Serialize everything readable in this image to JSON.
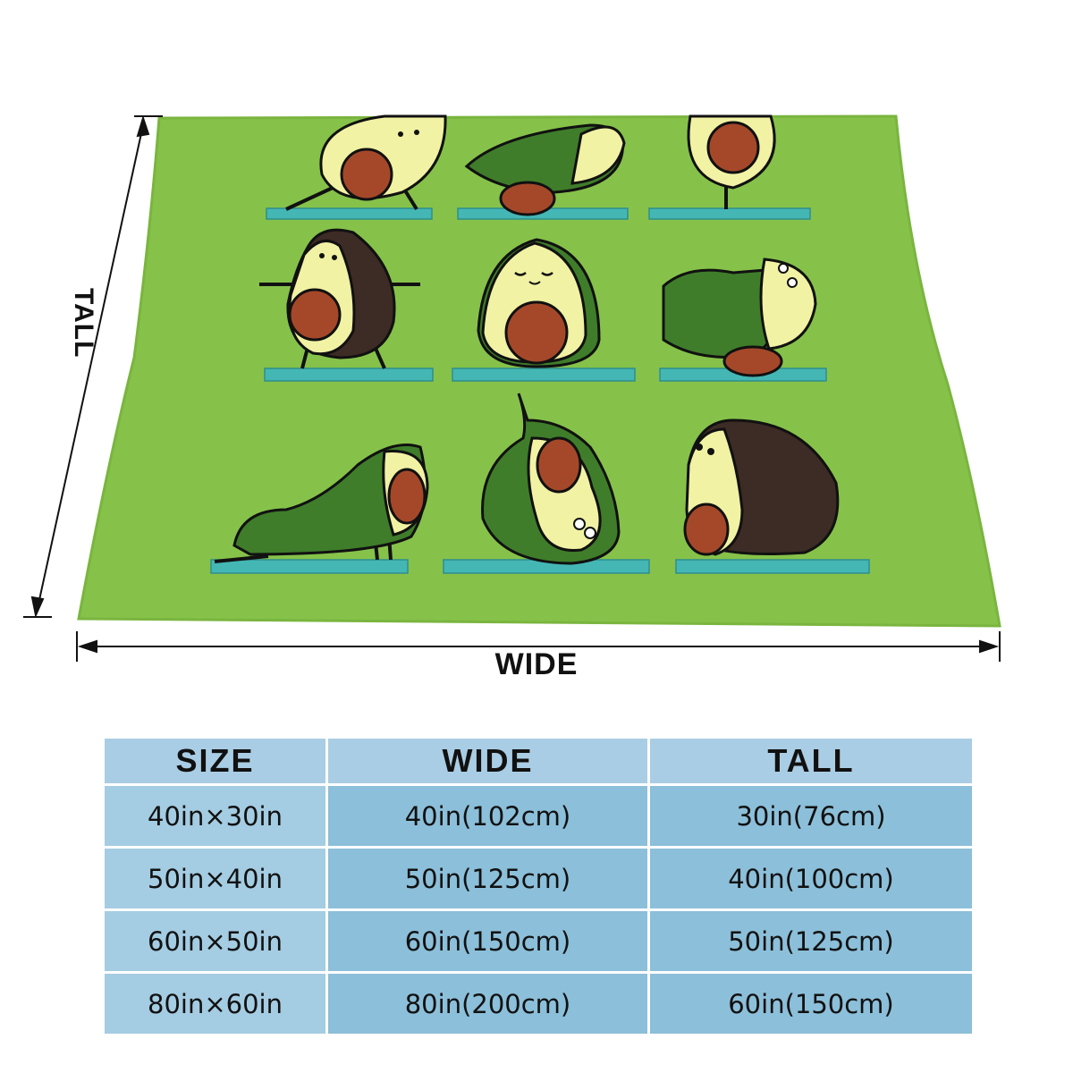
{
  "labels": {
    "tall": "TALL",
    "wide": "WIDE"
  },
  "colors": {
    "blanket": "#86c24a",
    "mat": "#44b7b5",
    "avocado_dark": "#3f7d2a",
    "pit": "#a5482a",
    "flesh": "#f1f2a4",
    "table_header": "#a9cde4",
    "table_cell": "#8cbfd9"
  },
  "table": {
    "headers": [
      "SIZE",
      "WIDE",
      "TALL"
    ],
    "rows": [
      [
        "40in×30in",
        "40in(102cm)",
        "30in(76cm)"
      ],
      [
        "50in×40in",
        "50in(125cm)",
        "40in(100cm)"
      ],
      [
        "60in×50in",
        "60in(150cm)",
        "50in(125cm)"
      ],
      [
        "80in×60in",
        "80in(200cm)",
        "60in(150cm)"
      ]
    ]
  }
}
